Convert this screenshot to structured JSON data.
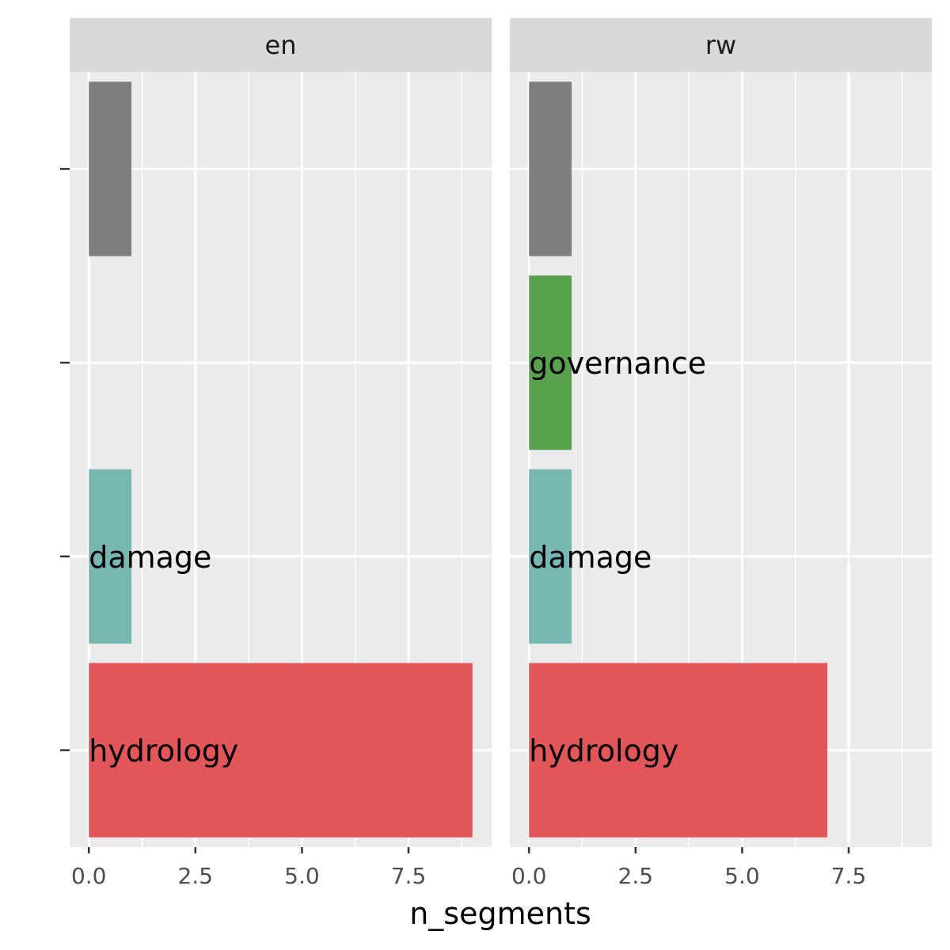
{
  "chart_data": {
    "type": "bar",
    "orientation": "horizontal",
    "xlabel": "n_segments",
    "ylabel": "",
    "xlim": [
      -0.45,
      9.45
    ],
    "x_ticks": [
      0.0,
      2.5,
      5.0,
      7.5
    ],
    "x_tick_labels": [
      "0.0",
      "2.5",
      "5.0",
      "7.5"
    ],
    "categories": [
      "",
      "governance",
      "damage",
      "hydrology"
    ],
    "colors": {
      "": "#7f7f7f",
      "governance": "#59a14f",
      "damage": "#76b7b2",
      "hydrology": "#e15759"
    },
    "panels": [
      {
        "name": "en",
        "bars": [
          {
            "category": "",
            "value": 1,
            "label": ""
          },
          {
            "category": "damage",
            "value": 1,
            "label": "damage"
          },
          {
            "category": "hydrology",
            "value": 9,
            "label": "hydrology"
          }
        ]
      },
      {
        "name": "rw",
        "bars": [
          {
            "category": "",
            "value": 1,
            "label": ""
          },
          {
            "category": "governance",
            "value": 1,
            "label": "governance"
          },
          {
            "category": "damage",
            "value": 1,
            "label": "damage"
          },
          {
            "category": "hydrology",
            "value": 7,
            "label": "hydrology"
          }
        ]
      }
    ],
    "grid": true,
    "legend": "none"
  }
}
